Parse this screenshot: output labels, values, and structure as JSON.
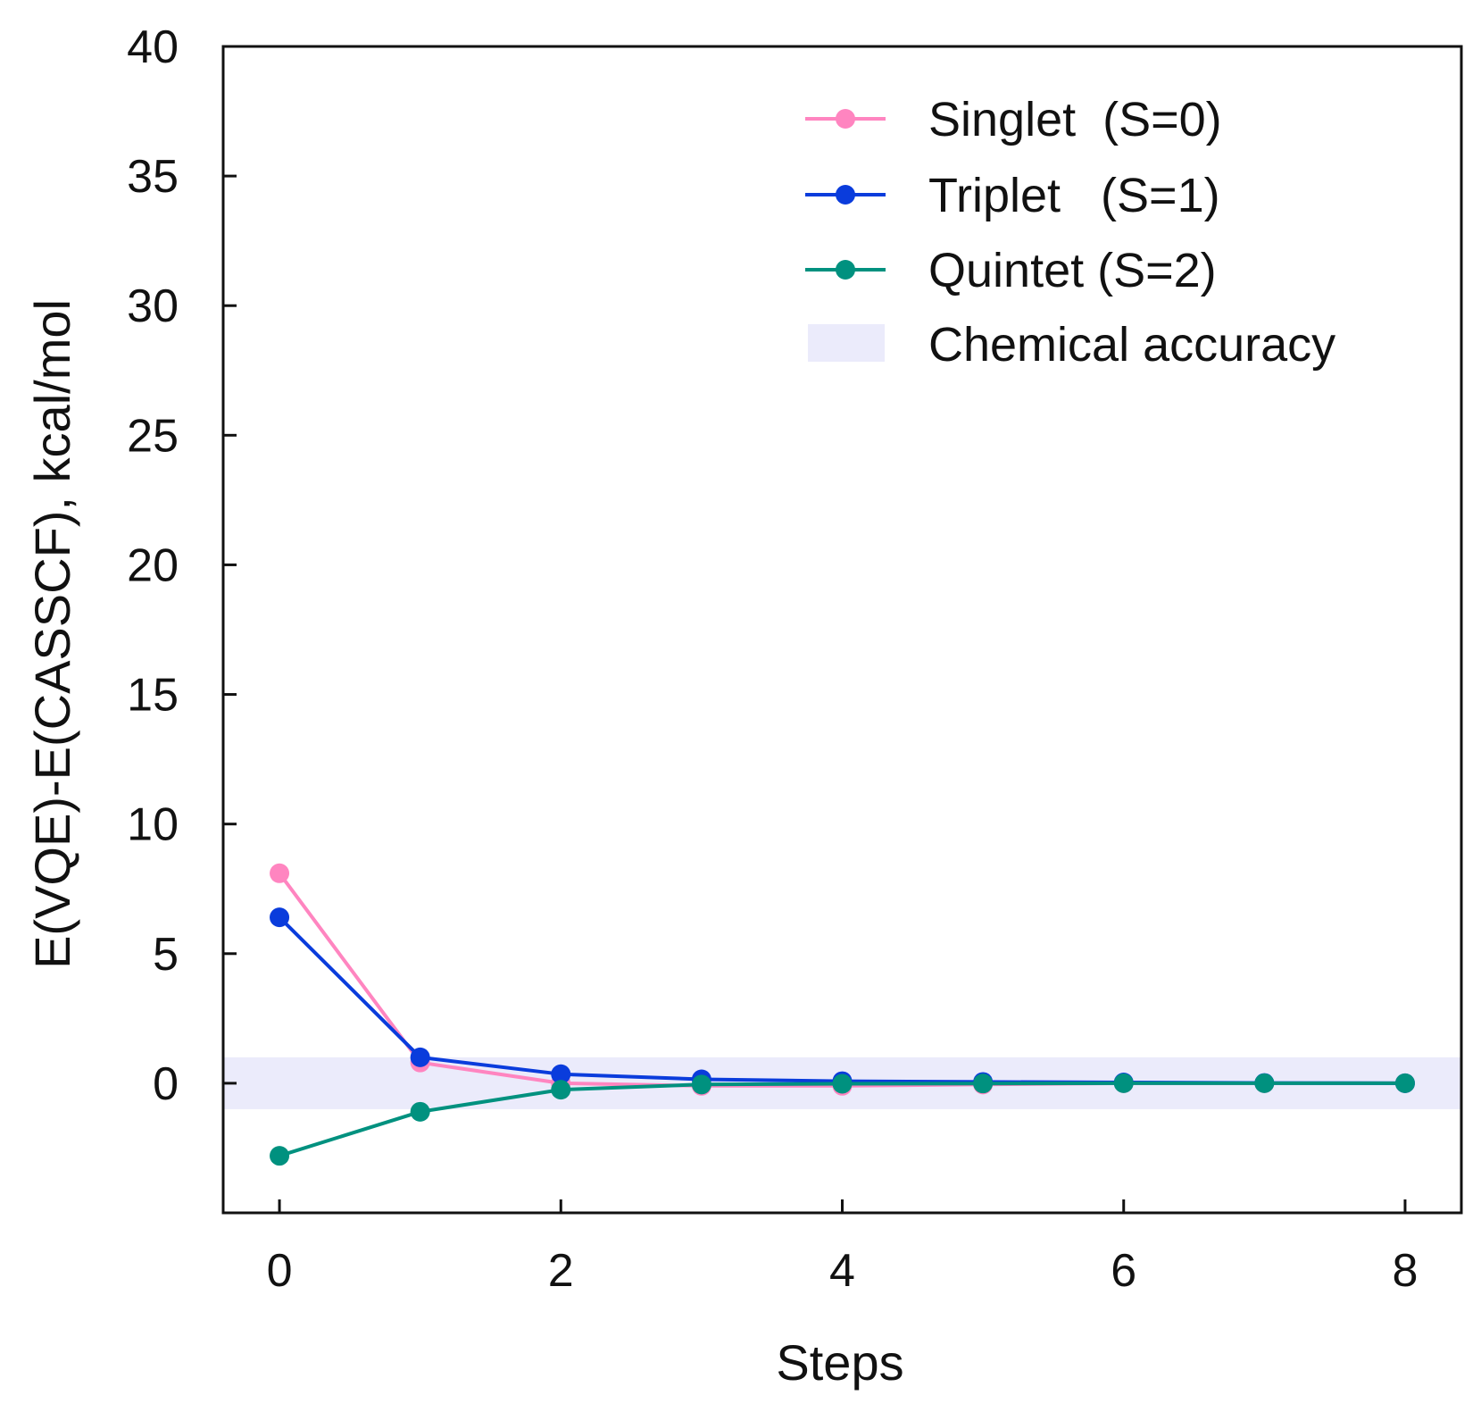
{
  "chart_data": {
    "type": "line",
    "title": "",
    "xlabel": "Steps",
    "ylabel": "E(VQE)-E(CASSCF), kcal/mol",
    "xlim": [
      -0.4,
      8.4
    ],
    "ylim": [
      -5,
      40
    ],
    "xticks": [
      0,
      2,
      4,
      6,
      8
    ],
    "yticks": [
      0,
      5,
      10,
      15,
      20,
      25,
      30,
      35,
      40
    ],
    "x": [
      0,
      1,
      2,
      3,
      4,
      5,
      6,
      7,
      8
    ],
    "series": [
      {
        "name": "Singlet  (S=0)",
        "color": "#ff85c0",
        "values": [
          8.1,
          0.8,
          0.0,
          -0.1,
          -0.1,
          -0.05,
          0.0,
          0.0,
          0.0
        ]
      },
      {
        "name": "Triplet   (S=1)",
        "color": "#0a3cdc",
        "values": [
          6.4,
          1.0,
          0.35,
          0.15,
          0.08,
          0.05,
          0.03,
          0.01,
          0.0
        ]
      },
      {
        "name": "Quintet (S=2)",
        "color": "#00917f",
        "values": [
          -2.8,
          -1.1,
          -0.25,
          -0.05,
          -0.02,
          -0.01,
          0.0,
          0.0,
          0.0
        ]
      }
    ],
    "band": {
      "name": "Chemical accuracy",
      "color": "#ebebfb",
      "range": [
        -1,
        1
      ]
    },
    "legend": "top-right",
    "grid": false
  }
}
